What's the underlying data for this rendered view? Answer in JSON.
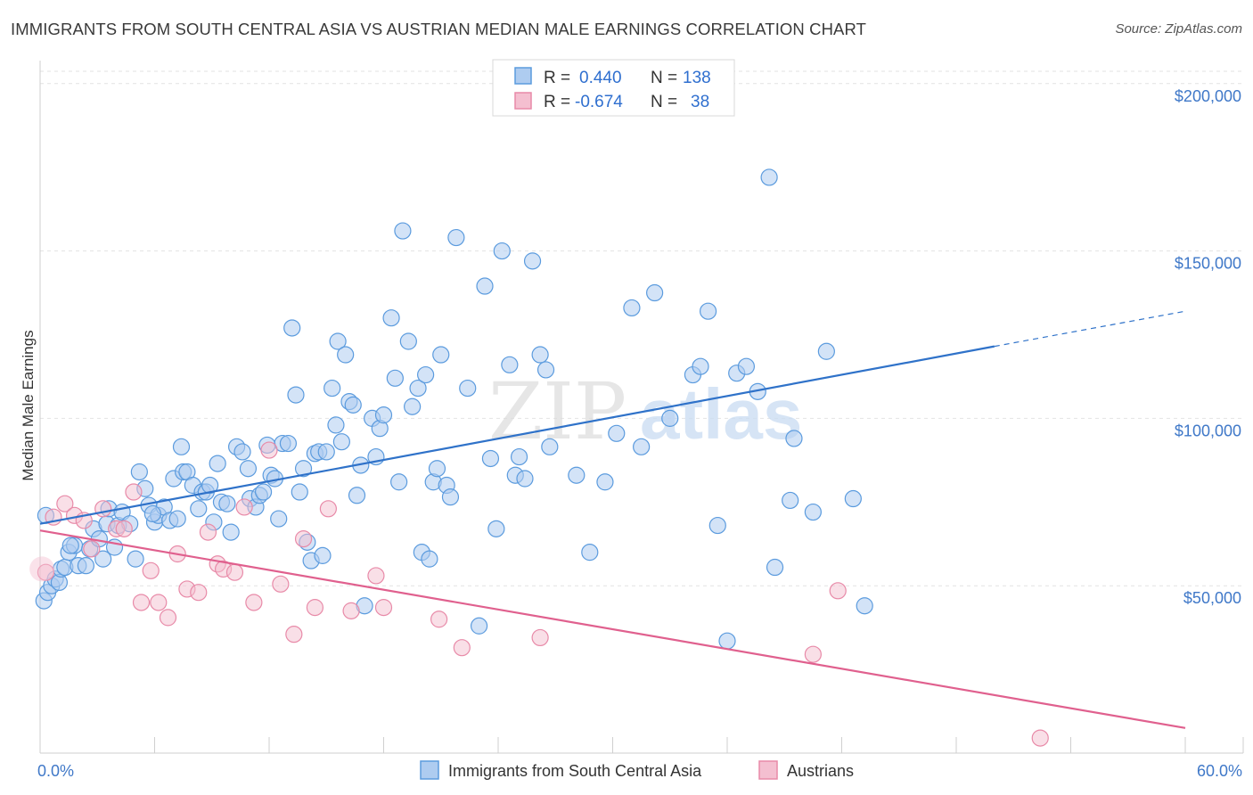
{
  "header": {
    "title": "IMMIGRANTS FROM SOUTH CENTRAL ASIA VS AUSTRIAN MEDIAN MALE EARNINGS CORRELATION CHART",
    "source": "Source: ZipAtlas.com"
  },
  "watermark": {
    "part1": "ZIP",
    "part2": "atlas"
  },
  "colors": {
    "blue": "#5b9bde",
    "blue_fill": "#aeccf0",
    "blue_line": "#2f72c9",
    "pink": "#e88aa8",
    "pink_fill": "#f4bfd0",
    "pink_line": "#e0608e",
    "tick_text": "#3f78c8"
  },
  "chart_data": {
    "type": "scatter",
    "title": "IMMIGRANTS FROM SOUTH CENTRAL ASIA VS AUSTRIAN MEDIAN MALE EARNINGS CORRELATION CHART",
    "xlabel": "",
    "ylabel": "Median Male Earnings",
    "xlim": [
      0,
      60
    ],
    "ylim": [
      0,
      205000
    ],
    "x_tick_labels": [
      "0.0%",
      "60.0%"
    ],
    "y_ticks": [
      50000,
      100000,
      150000,
      200000
    ],
    "y_tick_labels": [
      "$50,000",
      "$100,000",
      "$150,000",
      "$200,000"
    ],
    "grid": true,
    "legend_position": "top-center",
    "stats": [
      {
        "r_label": "R =",
        "r_value": "0.440",
        "n_label": "N =",
        "n_value": "138"
      },
      {
        "r_label": "R =",
        "r_value": "-0.674",
        "n_label": "N =",
        "n_value": "38"
      }
    ],
    "series": [
      {
        "name": "Immigrants from South Central Asia",
        "color": "#5b9bde",
        "trend": {
          "x0": 0,
          "y0": 68500,
          "x1": 50,
          "y1": 121500,
          "dash_to_x": 60,
          "dash_to_y": 132000
        },
        "points": [
          [
            0.2,
            45500
          ],
          [
            0.4,
            48000
          ],
          [
            0.6,
            50000
          ],
          [
            0.8,
            52000
          ],
          [
            1.0,
            51000
          ],
          [
            1.1,
            55000
          ],
          [
            1.3,
            55500
          ],
          [
            1.5,
            60000
          ],
          [
            1.8,
            62000
          ],
          [
            2.0,
            56000
          ],
          [
            2.4,
            56000
          ],
          [
            2.6,
            61000
          ],
          [
            2.8,
            67000
          ],
          [
            3.1,
            64000
          ],
          [
            3.3,
            58000
          ],
          [
            3.5,
            68500
          ],
          [
            3.6,
            73000
          ],
          [
            3.9,
            61500
          ],
          [
            4.1,
            68000
          ],
          [
            4.3,
            72000
          ],
          [
            4.7,
            68500
          ],
          [
            5.0,
            58000
          ],
          [
            5.2,
            84000
          ],
          [
            5.5,
            79000
          ],
          [
            5.7,
            74000
          ],
          [
            6.0,
            69000
          ],
          [
            6.2,
            71000
          ],
          [
            6.5,
            73500
          ],
          [
            6.8,
            69500
          ],
          [
            7.0,
            82000
          ],
          [
            7.2,
            70000
          ],
          [
            7.4,
            91500
          ],
          [
            7.5,
            84000
          ],
          [
            7.7,
            84000
          ],
          [
            8.0,
            80000
          ],
          [
            8.3,
            73000
          ],
          [
            8.5,
            78000
          ],
          [
            8.7,
            78000
          ],
          [
            8.9,
            80000
          ],
          [
            9.1,
            69000
          ],
          [
            9.3,
            86500
          ],
          [
            9.5,
            75000
          ],
          [
            9.8,
            74500
          ],
          [
            10.0,
            66000
          ],
          [
            10.3,
            91500
          ],
          [
            10.6,
            90000
          ],
          [
            10.9,
            85000
          ],
          [
            11.0,
            76000
          ],
          [
            11.3,
            73500
          ],
          [
            11.5,
            77000
          ],
          [
            11.7,
            78000
          ],
          [
            11.9,
            92000
          ],
          [
            12.1,
            83000
          ],
          [
            12.3,
            82000
          ],
          [
            12.5,
            70000
          ],
          [
            12.7,
            92500
          ],
          [
            13.0,
            92500
          ],
          [
            13.2,
            127000
          ],
          [
            13.4,
            107000
          ],
          [
            13.6,
            78000
          ],
          [
            13.8,
            85000
          ],
          [
            14.0,
            63000
          ],
          [
            14.2,
            57500
          ],
          [
            14.4,
            89500
          ],
          [
            14.6,
            90000
          ],
          [
            14.8,
            59000
          ],
          [
            15.0,
            90000
          ],
          [
            15.3,
            109000
          ],
          [
            15.5,
            98000
          ],
          [
            15.6,
            123000
          ],
          [
            15.8,
            93000
          ],
          [
            16.0,
            119000
          ],
          [
            16.2,
            105000
          ],
          [
            16.4,
            104000
          ],
          [
            16.6,
            77000
          ],
          [
            16.8,
            86000
          ],
          [
            17.0,
            44000
          ],
          [
            17.4,
            100000
          ],
          [
            17.6,
            88500
          ],
          [
            17.8,
            97000
          ],
          [
            18.0,
            101000
          ],
          [
            18.4,
            130000
          ],
          [
            18.6,
            112000
          ],
          [
            18.8,
            81000
          ],
          [
            19.0,
            156000
          ],
          [
            19.3,
            123000
          ],
          [
            19.5,
            103500
          ],
          [
            19.8,
            109000
          ],
          [
            20.0,
            60000
          ],
          [
            20.2,
            113000
          ],
          [
            20.4,
            58000
          ],
          [
            20.6,
            81000
          ],
          [
            20.8,
            85000
          ],
          [
            21.0,
            119000
          ],
          [
            21.3,
            80000
          ],
          [
            21.5,
            76500
          ],
          [
            21.8,
            154000
          ],
          [
            22.4,
            109000
          ],
          [
            23.0,
            38000
          ],
          [
            23.3,
            139500
          ],
          [
            23.6,
            88000
          ],
          [
            23.9,
            67000
          ],
          [
            24.2,
            150000
          ],
          [
            24.6,
            116000
          ],
          [
            24.9,
            83000
          ],
          [
            25.1,
            88500
          ],
          [
            25.4,
            82000
          ],
          [
            25.8,
            147000
          ],
          [
            26.2,
            119000
          ],
          [
            26.5,
            114500
          ],
          [
            26.7,
            91500
          ],
          [
            28.1,
            83000
          ],
          [
            28.8,
            60000
          ],
          [
            29.6,
            81000
          ],
          [
            30.2,
            95500
          ],
          [
            31.0,
            133000
          ],
          [
            31.5,
            91500
          ],
          [
            32.2,
            137500
          ],
          [
            33.0,
            100000
          ],
          [
            34.2,
            113000
          ],
          [
            34.6,
            115500
          ],
          [
            35.0,
            132000
          ],
          [
            35.5,
            68000
          ],
          [
            36.0,
            33500
          ],
          [
            36.5,
            113500
          ],
          [
            37.0,
            115500
          ],
          [
            37.6,
            108000
          ],
          [
            38.2,
            172000
          ],
          [
            38.5,
            55500
          ],
          [
            39.3,
            75500
          ],
          [
            39.5,
            94000
          ],
          [
            40.5,
            72000
          ],
          [
            41.2,
            120000
          ],
          [
            42.6,
            76000
          ],
          [
            43.2,
            44000
          ],
          [
            0.3,
            71000
          ],
          [
            1.6,
            62000
          ],
          [
            5.9,
            71500
          ]
        ]
      },
      {
        "name": "Austrians",
        "color": "#e88aa8",
        "trend": {
          "x0": 0,
          "y0": 66500,
          "x1": 60,
          "y1": 7500
        },
        "points": [
          [
            0.3,
            54000
          ],
          [
            0.7,
            70500
          ],
          [
            1.3,
            74500
          ],
          [
            1.8,
            71000
          ],
          [
            2.3,
            69500
          ],
          [
            2.7,
            61000
          ],
          [
            3.3,
            73000
          ],
          [
            4.0,
            67000
          ],
          [
            4.4,
            67000
          ],
          [
            4.9,
            78000
          ],
          [
            5.3,
            45000
          ],
          [
            5.8,
            54500
          ],
          [
            6.2,
            45000
          ],
          [
            6.7,
            40500
          ],
          [
            7.2,
            59500
          ],
          [
            7.7,
            49000
          ],
          [
            8.3,
            48000
          ],
          [
            8.8,
            66000
          ],
          [
            9.3,
            56500
          ],
          [
            9.6,
            55000
          ],
          [
            10.2,
            54000
          ],
          [
            10.7,
            73500
          ],
          [
            11.2,
            45000
          ],
          [
            12.0,
            90500
          ],
          [
            12.6,
            50500
          ],
          [
            13.3,
            35500
          ],
          [
            13.8,
            64000
          ],
          [
            14.4,
            43500
          ],
          [
            15.1,
            73000
          ],
          [
            16.3,
            42500
          ],
          [
            17.6,
            53000
          ],
          [
            18.0,
            43500
          ],
          [
            20.9,
            40000
          ],
          [
            22.1,
            31500
          ],
          [
            26.2,
            34500
          ],
          [
            40.5,
            29500
          ],
          [
            41.8,
            48500
          ],
          [
            52.4,
            4500
          ]
        ]
      }
    ]
  },
  "legend_bottom": {
    "items": [
      "Immigrants from South Central Asia",
      "Austrians"
    ]
  }
}
